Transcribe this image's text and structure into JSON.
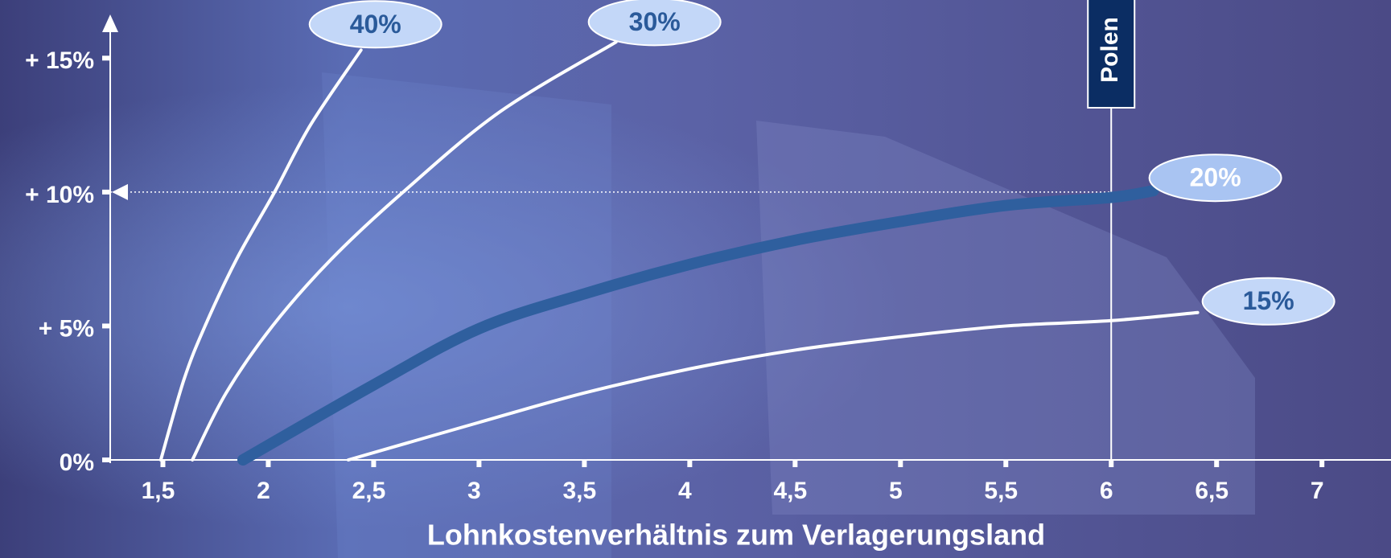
{
  "chart_data": {
    "type": "line",
    "x_label": "Lohnkostenverhältnis zum Verlagerungsland",
    "xlim": [
      1.25,
      7.32
    ],
    "xticks": [
      {
        "value": 1.5,
        "label": "1,5"
      },
      2,
      {
        "value": 2.5,
        "label": "2,5"
      },
      3,
      {
        "value": 3.5,
        "label": "3,5"
      },
      4,
      {
        "value": 4.5,
        "label": "4,5"
      },
      5,
      {
        "value": 5.5,
        "label": "5,5"
      },
      6,
      {
        "value": 6.5,
        "label": "6,5"
      },
      7
    ],
    "ylim": [
      0,
      16.6
    ],
    "yticks": [
      {
        "value": 0,
        "label": "0%"
      },
      {
        "value": 5,
        "label": "+ 5%"
      },
      {
        "value": 10,
        "label": "+ 10%"
      },
      {
        "value": 15,
        "label": "+ 15%"
      }
    ],
    "series": [
      {
        "name": "40%",
        "color": "#ffffff",
        "width": 4,
        "x": [
          1.49,
          1.6,
          1.7,
          1.85,
          2.03,
          2.2,
          2.44
        ],
        "values": [
          0,
          3,
          5,
          7.5,
          10,
          12.5,
          15.3
        ]
      },
      {
        "name": "30%",
        "color": "#ffffff",
        "width": 4,
        "x": [
          1.64,
          1.8,
          2.02,
          2.3,
          2.64,
          3.1,
          3.65
        ],
        "values": [
          0,
          2.5,
          5,
          7.5,
          10,
          13,
          15.6
        ]
      },
      {
        "name": "20%",
        "color": "#2f5f9e",
        "width": 14,
        "x": [
          1.88,
          2.5,
          3,
          3.5,
          4,
          4.5,
          5,
          5.5,
          6,
          6.2
        ],
        "values": [
          0,
          2.8,
          4.9,
          6.2,
          7.3,
          8.2,
          8.9,
          9.5,
          9.8,
          10.05
        ]
      },
      {
        "name": "15%",
        "color": "#ffffff",
        "width": 4,
        "x": [
          2.38,
          3,
          3.5,
          4,
          4.5,
          5,
          5.5,
          6,
          6.41
        ],
        "values": [
          0,
          1.4,
          2.5,
          3.4,
          4.1,
          4.6,
          5.0,
          5.2,
          5.5
        ]
      }
    ],
    "marker": {
      "label": "Polen",
      "x": 6,
      "y": 10
    }
  }
}
